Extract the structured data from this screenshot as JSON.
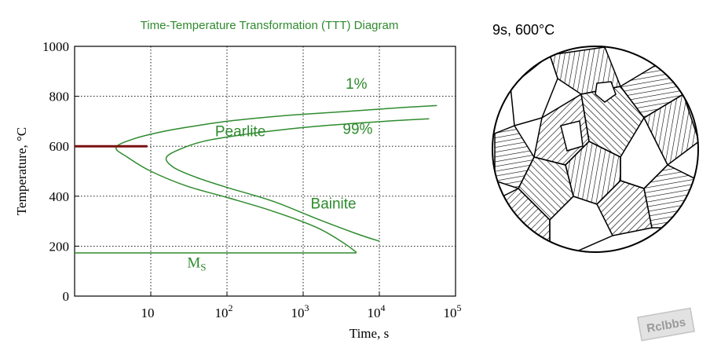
{
  "chart_data": {
    "type": "line",
    "title": "Time-Temperature Transformation (TTT) Diagram",
    "xlabel": "Time, s",
    "ylabel": "Temperature, °C",
    "x_scale": "log",
    "xlim": [
      1,
      100000
    ],
    "ylim": [
      0,
      1000
    ],
    "grid": true,
    "x_ticks": [
      {
        "value": 10,
        "base": "10",
        "exp": ""
      },
      {
        "value": 100,
        "base": "10",
        "exp": "2"
      },
      {
        "value": 1000,
        "base": "10",
        "exp": "3"
      },
      {
        "value": 10000,
        "base": "10",
        "exp": "4"
      },
      {
        "value": 100000,
        "base": "10",
        "exp": "5"
      }
    ],
    "y_ticks": [
      0,
      200,
      400,
      600,
      800,
      1000
    ],
    "series": [
      {
        "name": "1%",
        "color": "#2e8b2e",
        "points": [
          [
            57000,
            763
          ],
          [
            20000,
            755
          ],
          [
            5000,
            742
          ],
          [
            1000,
            728
          ],
          [
            300,
            715
          ],
          [
            100,
            700
          ],
          [
            40,
            682
          ],
          [
            15,
            660
          ],
          [
            6,
            630
          ],
          [
            3.5,
            595
          ],
          [
            5,
            555
          ],
          [
            10,
            500
          ],
          [
            30,
            440
          ],
          [
            100,
            395
          ],
          [
            400,
            340
          ],
          [
            1500,
            275
          ],
          [
            3500,
            210
          ],
          [
            5000,
            175
          ]
        ]
      },
      {
        "name": "99%",
        "color": "#2e8b2e",
        "points": [
          [
            45000,
            710
          ],
          [
            15000,
            702
          ],
          [
            5000,
            692
          ],
          [
            1500,
            680
          ],
          [
            500,
            665
          ],
          [
            150,
            645
          ],
          [
            50,
            620
          ],
          [
            25,
            590
          ],
          [
            16,
            555
          ],
          [
            20,
            515
          ],
          [
            40,
            475
          ],
          [
            100,
            435
          ],
          [
            400,
            380
          ],
          [
            1500,
            310
          ],
          [
            5000,
            250
          ],
          [
            10000,
            220
          ]
        ]
      },
      {
        "name": "Ms",
        "color": "#2e8b2e",
        "points": [
          [
            1,
            173
          ],
          [
            5000,
            173
          ]
        ]
      }
    ],
    "process_path": {
      "label": "9s, 600°C",
      "color": "#7a1010",
      "points": [
        [
          1,
          600
        ],
        [
          9,
          600
        ]
      ]
    },
    "region_labels": [
      {
        "text": "1%",
        "x": 5000,
        "y": 830
      },
      {
        "text": "99%",
        "x": 5200,
        "y": 650
      },
      {
        "text": "Pearlite",
        "x": 150,
        "y": 640
      },
      {
        "text": "Bainite",
        "x": 2500,
        "y": 350
      },
      {
        "text": "M",
        "sub": "S",
        "x": 40,
        "y": 115
      }
    ]
  },
  "microstructure": {
    "caption": "9s, 600°C"
  },
  "watermark": {
    "text": "Rclbbs"
  },
  "colors": {
    "title": "#2e8b2e",
    "curve": "#2e8b2e",
    "path": "#7a1010",
    "axis": "#000000"
  }
}
